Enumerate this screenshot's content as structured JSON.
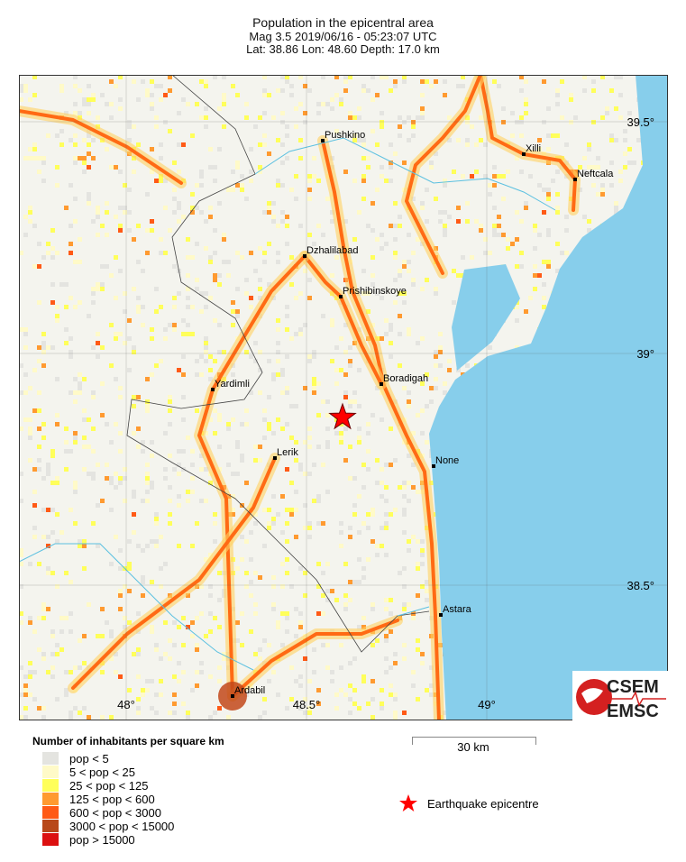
{
  "header": {
    "title": "Population in the epicentral area",
    "line2": "Mag 3.5  2019/06/16 - 05:23:07 UTC",
    "line3": "Lat: 38.86    Lon:  48.60    Depth:  17.0 km"
  },
  "map": {
    "lon_ticks": [
      "48°",
      "48.5°",
      "49°"
    ],
    "lat_ticks": [
      "39.5°",
      "39°",
      "38.5°"
    ],
    "colors": {
      "sea": "#87ceeb",
      "land": "#f4f4ee",
      "road": "#ff6a14",
      "border": "#444444",
      "river": "#5bc0e0"
    },
    "cities": [
      {
        "name": "Pushkino"
      },
      {
        "name": "Xilli"
      },
      {
        "name": "Neftcala"
      },
      {
        "name": "Dzhalilabad"
      },
      {
        "name": "Prishibinskoye"
      },
      {
        "name": "Boradigah"
      },
      {
        "name": "Yardimli"
      },
      {
        "name": "Lerik"
      },
      {
        "name": "None"
      },
      {
        "name": "Astara"
      },
      {
        "name": "Ardabil"
      }
    ],
    "epicentre": {
      "lat": 38.86,
      "lon": 48.6,
      "color": "#ff0000"
    }
  },
  "legend": {
    "title": "Number of inhabitants per square km",
    "items": [
      {
        "label": "pop < 5",
        "color": "#e4e4e0"
      },
      {
        "label": "5 < pop < 25",
        "color": "#fffac8"
      },
      {
        "label": "25 < pop < 125",
        "color": "#ffff5a"
      },
      {
        "label": "125 < pop < 600",
        "color": "#ff9a30"
      },
      {
        "label": "600 < pop < 3000",
        "color": "#ff5a16"
      },
      {
        "label": "3000 < pop < 15000",
        "color": "#b8481a"
      },
      {
        "label": "pop > 15000",
        "color": "#dc1010"
      }
    ],
    "scale_label": "30 km",
    "epicentre_label": "Earthquake epicentre"
  },
  "logo": {
    "top": "CSEM",
    "bottom": "EMSC"
  }
}
